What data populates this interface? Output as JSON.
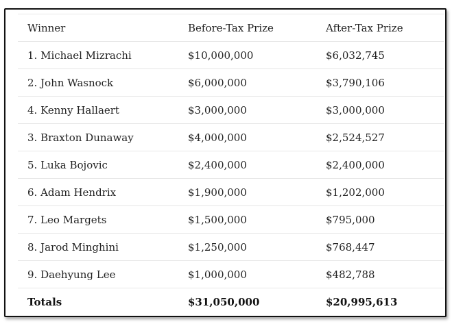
{
  "table": {
    "headers": {
      "winner": "Winner",
      "before_tax": "Before-Tax Prize",
      "after_tax": "After-Tax Prize"
    },
    "rows": [
      {
        "winner": "1. Michael Mizrachi",
        "before_tax": "$10,000,000",
        "after_tax": "$6,032,745"
      },
      {
        "winner": "2. John Wasnock",
        "before_tax": "$6,000,000",
        "after_tax": "$3,790,106"
      },
      {
        "winner": "4. Kenny Hallaert",
        "before_tax": "$3,000,000",
        "after_tax": "$3,000,000"
      },
      {
        "winner": "3. Braxton Dunaway",
        "before_tax": "$4,000,000",
        "after_tax": "$2,524,527"
      },
      {
        "winner": "5. Luka Bojovic",
        "before_tax": "$2,400,000",
        "after_tax": "$2,400,000"
      },
      {
        "winner": "6. Adam Hendrix",
        "before_tax": "$1,900,000",
        "after_tax": "$1,202,000"
      },
      {
        "winner": "7. Leo Margets",
        "before_tax": "$1,500,000",
        "after_tax": "$795,000"
      },
      {
        "winner": "8. Jarod Minghini",
        "before_tax": "$1,250,000",
        "after_tax": "$768,447"
      },
      {
        "winner": "9. Daehyung Lee",
        "before_tax": "$1,000,000",
        "after_tax": "$482,788"
      }
    ],
    "totals": {
      "label": "Totals",
      "before_tax": "$31,050,000",
      "after_tax": "$20,995,613"
    }
  },
  "colors": {
    "border": "#111111",
    "row_divider": "#e6e6e6",
    "text": "#222222"
  }
}
